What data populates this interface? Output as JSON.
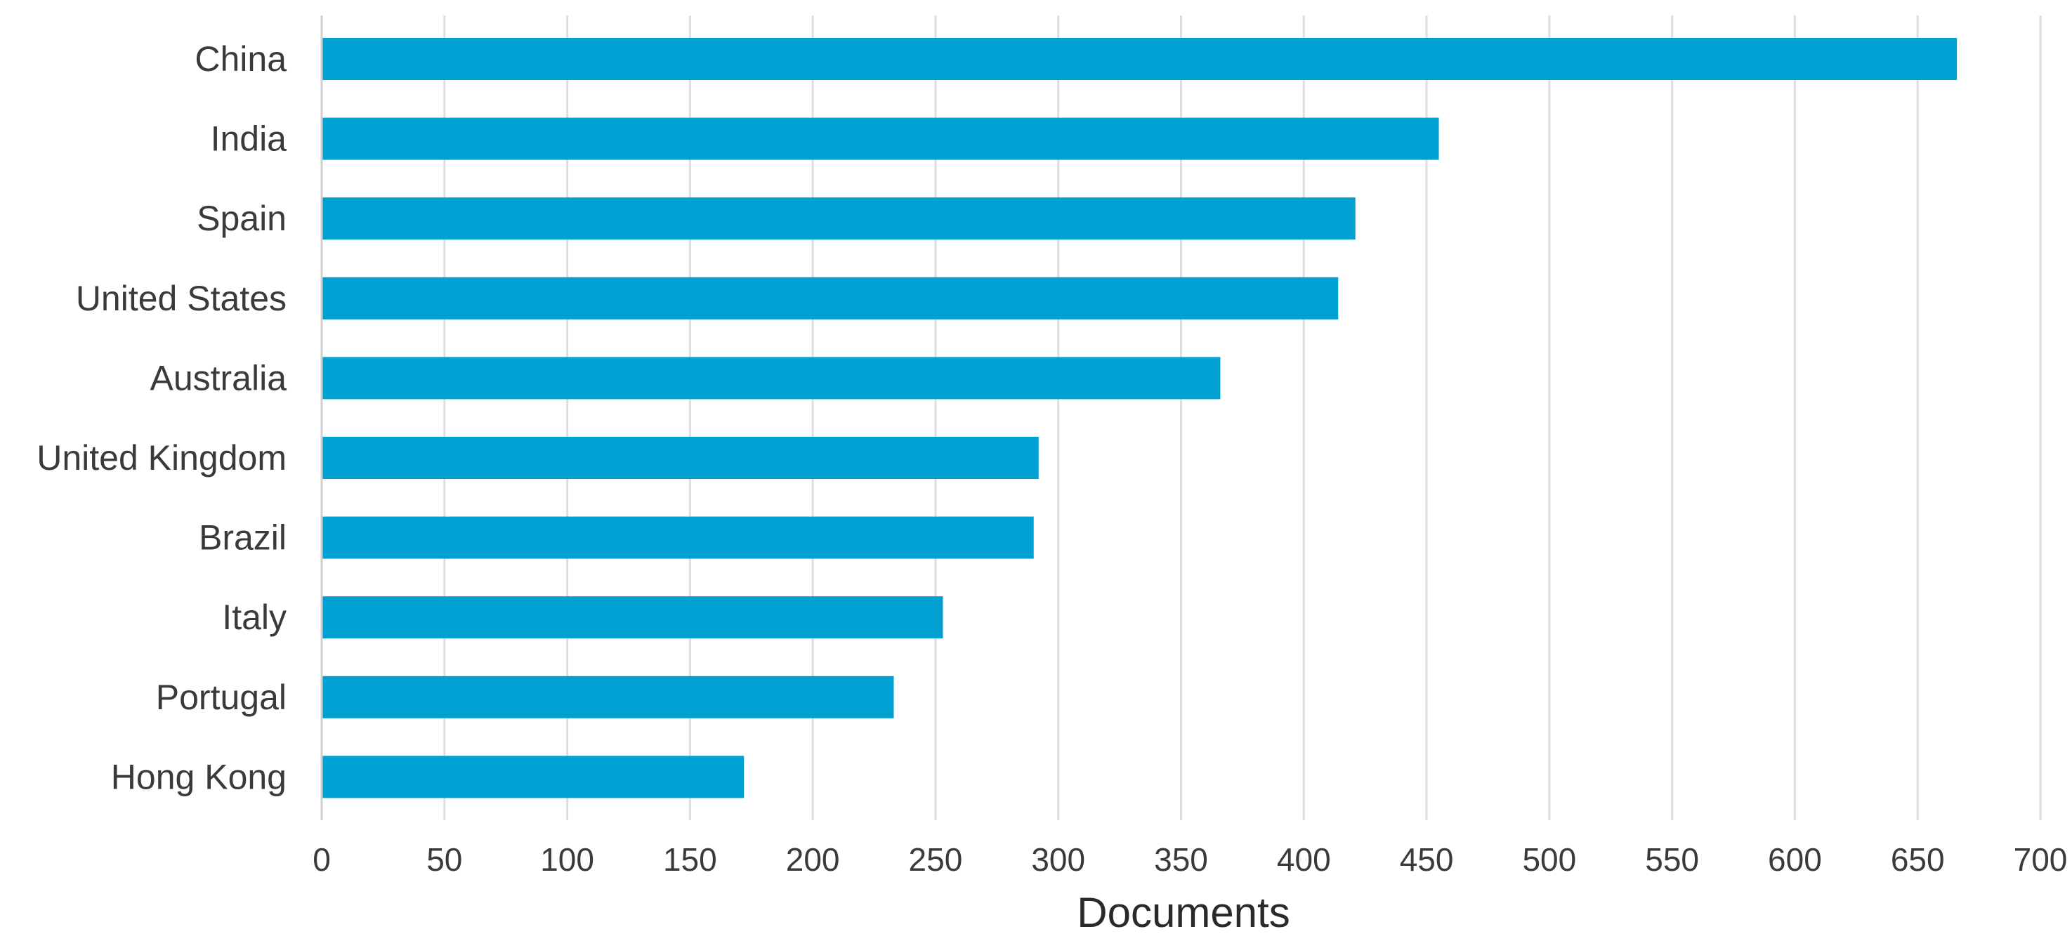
{
  "chart_data": {
    "type": "bar",
    "orientation": "horizontal",
    "categories": [
      "China",
      "India",
      "Spain",
      "United States",
      "Australia",
      "United Kingdom",
      "Brazil",
      "Italy",
      "Portugal",
      "Hong Kong"
    ],
    "values": [
      666,
      455,
      421,
      414,
      366,
      292,
      290,
      253,
      233,
      172
    ],
    "xlabel": "Documents",
    "ylabel": "",
    "title": "",
    "xlim": [
      0,
      700
    ],
    "xticks": [
      "0",
      "50",
      "100",
      "150",
      "200",
      "250",
      "300",
      "350",
      "400",
      "450",
      "500",
      "550",
      "600",
      "650",
      "700"
    ],
    "bar_color": "#00a0d2",
    "grid": "vertical",
    "legend": "none"
  }
}
